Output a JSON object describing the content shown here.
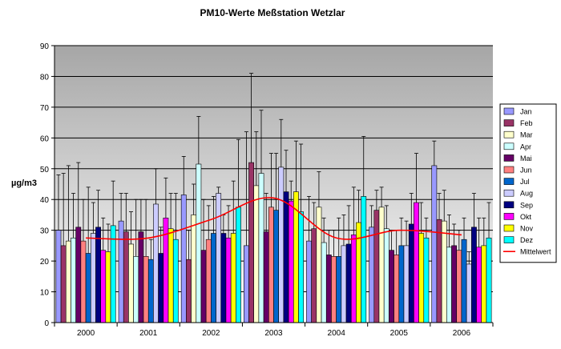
{
  "chart_data": {
    "type": "bar",
    "title": "PM10-Werte Meßstation Wetzlar",
    "xlabel": "",
    "ylabel": "µg/m3",
    "ylim": [
      0,
      90
    ],
    "yticks": [
      0,
      10,
      20,
      30,
      40,
      50,
      60,
      70,
      80,
      90
    ],
    "grid": true,
    "legend_position": "right",
    "categories": [
      "2000",
      "2001",
      "2002",
      "2003",
      "2004",
      "2005",
      "2006"
    ],
    "series": [
      {
        "name": "Jan",
        "color": "#9999ff",
        "values": [
          30,
          33,
          41.5,
          25,
          26.5,
          31,
          51
        ],
        "err": [
          48,
          42,
          54,
          62,
          41,
          38,
          59
        ]
      },
      {
        "name": "Feb",
        "color": "#993366",
        "values": [
          25,
          29.5,
          20.5,
          52,
          30.5,
          36.5,
          33.5
        ],
        "err": [
          48.5,
          42,
          30,
          81,
          39,
          43,
          42
        ]
      },
      {
        "name": "Mar",
        "color": "#ffffcc",
        "values": [
          26.5,
          25.5,
          35,
          44.5,
          37.5,
          37.5,
          33
        ],
        "err": [
          51,
          36,
          45,
          62,
          49,
          44,
          43
        ]
      },
      {
        "name": "Apr",
        "color": "#ccffff",
        "values": [
          27.5,
          21.5,
          51.5,
          48.5,
          26,
          30.5,
          24.5
        ],
        "err": [
          42,
          40,
          67,
          69,
          34,
          38,
          35
        ]
      },
      {
        "name": "Mai",
        "color": "#660066",
        "values": [
          31,
          29.5,
          23.5,
          29.5,
          22,
          23.5,
          25
        ],
        "err": [
          52,
          40,
          40,
          42,
          30,
          30,
          32
        ]
      },
      {
        "name": "Jun",
        "color": "#ff8080",
        "values": [
          26.5,
          21.5,
          27,
          37.5,
          21.5,
          22,
          23.5
        ],
        "err": [
          40,
          40,
          38,
          55,
          30,
          30,
          30
        ]
      },
      {
        "name": "Jul",
        "color": "#0066cc",
        "values": [
          22.5,
          20.5,
          29,
          36.5,
          21.5,
          25,
          27
        ],
        "err": [
          44,
          27,
          41,
          55,
          34,
          34,
          34
        ]
      },
      {
        "name": "Aug",
        "color": "#ccccff",
        "values": [
          29,
          38.5,
          42,
          50.5,
          25,
          25,
          19
        ],
        "err": [
          39,
          50,
          44,
          66,
          35,
          33,
          23
        ]
      },
      {
        "name": "Sep",
        "color": "#000080",
        "values": [
          31,
          22.5,
          29,
          42.5,
          25.5,
          32,
          31
        ],
        "err": [
          43,
          31,
          35,
          56,
          38,
          42,
          42
        ]
      },
      {
        "name": "Okt",
        "color": "#ff00ff",
        "values": [
          23.5,
          34,
          27.5,
          39.5,
          28.5,
          39,
          24.5
        ],
        "err": [
          34,
          47,
          38,
          46,
          44,
          55,
          34
        ]
      },
      {
        "name": "Nov",
        "color": "#ffff00",
        "values": [
          23,
          30.5,
          29,
          42.5,
          32.5,
          29,
          25
        ],
        "err": [
          32,
          42,
          46,
          59,
          43,
          39,
          34
        ]
      },
      {
        "name": "Dez",
        "color": "#00ffff",
        "values": [
          31.5,
          27,
          37.5,
          36,
          41,
          27.5,
          27.5
        ],
        "err": [
          46,
          42,
          59.5,
          58,
          60.5,
          34,
          39
        ]
      }
    ],
    "trend": {
      "name": "Mittelwert",
      "color": "#ff0000",
      "type": "line",
      "values": [
        27.5,
        27.5,
        33.5,
        40.5,
        27.5,
        30,
        28.5
      ]
    }
  }
}
